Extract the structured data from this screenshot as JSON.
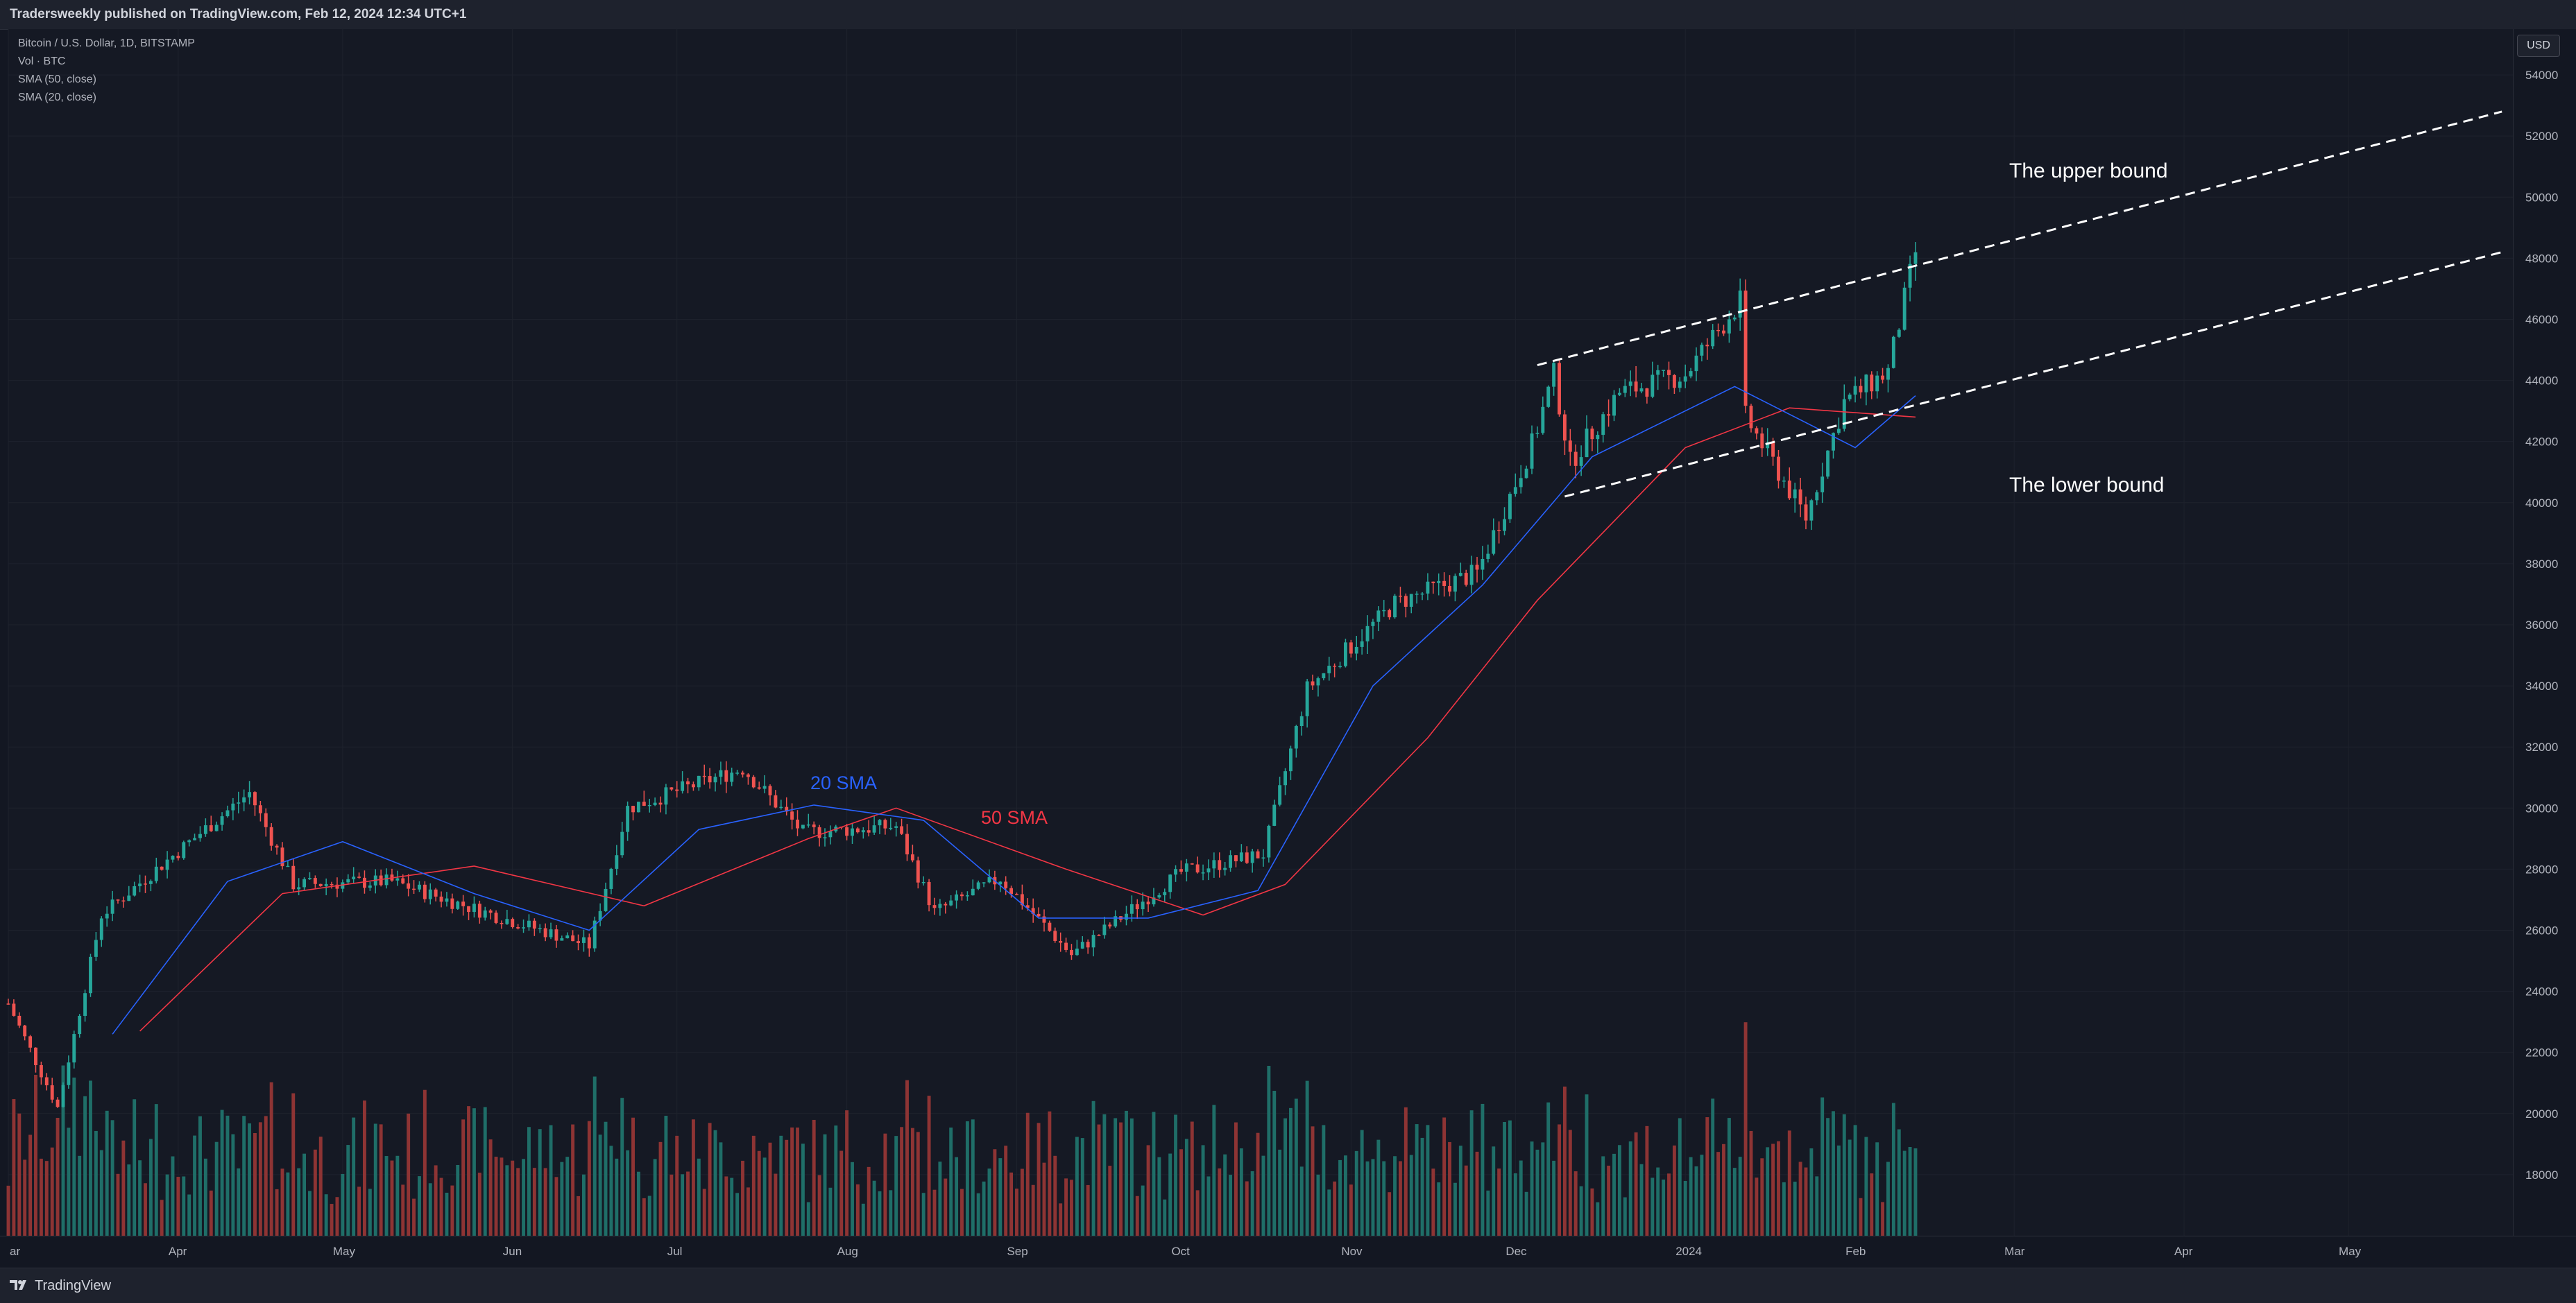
{
  "header": {
    "publish_text": "Tradersweekly published on TradingView.com, Feb 12, 2024 12:34 UTC+1"
  },
  "legend": {
    "symbol": "Bitcoin / U.S. Dollar, 1D, BITSTAMP",
    "volume": "Vol · BTC",
    "sma50": "SMA (50, close)",
    "sma20": "SMA (20, close)"
  },
  "currency_badge": "USD",
  "footer": {
    "brand": "TradingView"
  },
  "annotations": {
    "sma20_label": "20 SMA",
    "sma50_label": "50 SMA",
    "upper_bound": "The upper bound",
    "lower_bound": "The lower bound"
  },
  "colors": {
    "background": "#131722",
    "up_candle": "#26a69a",
    "down_candle": "#ef5350",
    "up_volume": "#1f6e68",
    "down_volume": "#8e3434",
    "sma20": "#2962ff",
    "sma50": "#f23645",
    "grid": "#1e222d",
    "axis_text": "#b2b5be",
    "channel_line": "#ffffff"
  },
  "chart_data": {
    "type": "candlestick",
    "title": "Bitcoin / U.S. Dollar, 1D, BITSTAMP",
    "x_ticks": [
      "ar",
      "Apr",
      "May",
      "Jun",
      "Jul",
      "Aug",
      "Sep",
      "Oct",
      "Nov",
      "Dec",
      "2024",
      "Feb",
      "Mar",
      "Apr",
      "May"
    ],
    "y_ticks": [
      18000,
      20000,
      22000,
      24000,
      26000,
      28000,
      30000,
      32000,
      34000,
      36000,
      38000,
      40000,
      42000,
      44000,
      46000,
      48000,
      50000,
      52000,
      54000
    ],
    "ylim": [
      16000,
      55500
    ],
    "grid": true,
    "date_range": [
      "2023-03-01",
      "2024-05-31"
    ],
    "price_key_points": [
      {
        "date": "2023-03-01",
        "close": 23600
      },
      {
        "date": "2023-03-10",
        "close": 20200
      },
      {
        "date": "2023-03-18",
        "close": 26500
      },
      {
        "date": "2023-03-28",
        "close": 28000
      },
      {
        "date": "2023-04-14",
        "close": 30500
      },
      {
        "date": "2023-04-22",
        "close": 27500
      },
      {
        "date": "2023-05-10",
        "close": 27600
      },
      {
        "date": "2023-05-25",
        "close": 26700
      },
      {
        "date": "2023-06-15",
        "close": 25500
      },
      {
        "date": "2023-06-22",
        "close": 30000
      },
      {
        "date": "2023-07-13",
        "close": 31300
      },
      {
        "date": "2023-07-24",
        "close": 29200
      },
      {
        "date": "2023-08-10",
        "close": 29400
      },
      {
        "date": "2023-08-17",
        "close": 26600
      },
      {
        "date": "2023-08-29",
        "close": 27700
      },
      {
        "date": "2023-09-11",
        "close": 25200
      },
      {
        "date": "2023-10-01",
        "close": 27900
      },
      {
        "date": "2023-10-16",
        "close": 28500
      },
      {
        "date": "2023-10-24",
        "close": 33900
      },
      {
        "date": "2023-11-09",
        "close": 36700
      },
      {
        "date": "2023-11-24",
        "close": 37700
      },
      {
        "date": "2023-12-04",
        "close": 41900
      },
      {
        "date": "2023-12-08",
        "close": 44200
      },
      {
        "date": "2023-12-11",
        "close": 41300
      },
      {
        "date": "2023-12-20",
        "close": 43600
      },
      {
        "date": "2024-01-01",
        "close": 44200
      },
      {
        "date": "2024-01-11",
        "close": 46600
      },
      {
        "date": "2024-01-12",
        "close": 42800
      },
      {
        "date": "2024-01-23",
        "close": 39500
      },
      {
        "date": "2024-01-30",
        "close": 43300
      },
      {
        "date": "2024-02-07",
        "close": 44300
      },
      {
        "date": "2024-02-12",
        "close": 48200
      }
    ],
    "sma20_key_points": [
      {
        "date": "2023-03-20",
        "value": 22600
      },
      {
        "date": "2023-04-10",
        "value": 27600
      },
      {
        "date": "2023-05-01",
        "value": 28900
      },
      {
        "date": "2023-05-25",
        "value": 27200
      },
      {
        "date": "2023-06-15",
        "value": 26000
      },
      {
        "date": "2023-07-05",
        "value": 29300
      },
      {
        "date": "2023-07-26",
        "value": 30100
      },
      {
        "date": "2023-08-15",
        "value": 29600
      },
      {
        "date": "2023-09-05",
        "value": 26400
      },
      {
        "date": "2023-09-25",
        "value": 26400
      },
      {
        "date": "2023-10-15",
        "value": 27300
      },
      {
        "date": "2023-11-05",
        "value": 34000
      },
      {
        "date": "2023-11-25",
        "value": 37300
      },
      {
        "date": "2023-12-15",
        "value": 41500
      },
      {
        "date": "2024-01-10",
        "value": 43800
      },
      {
        "date": "2024-02-01",
        "value": 41800
      },
      {
        "date": "2024-02-12",
        "value": 43500
      }
    ],
    "sma50_key_points": [
      {
        "date": "2023-03-25",
        "value": 22700
      },
      {
        "date": "2023-04-20",
        "value": 27200
      },
      {
        "date": "2023-05-25",
        "value": 28100
      },
      {
        "date": "2023-06-25",
        "value": 26800
      },
      {
        "date": "2023-07-25",
        "value": 29000
      },
      {
        "date": "2023-08-10",
        "value": 30000
      },
      {
        "date": "2023-09-10",
        "value": 28000
      },
      {
        "date": "2023-10-05",
        "value": 26500
      },
      {
        "date": "2023-10-20",
        "value": 27500
      },
      {
        "date": "2023-11-15",
        "value": 32300
      },
      {
        "date": "2023-12-05",
        "value": 36800
      },
      {
        "date": "2024-01-01",
        "value": 41800
      },
      {
        "date": "2024-01-20",
        "value": 43100
      },
      {
        "date": "2024-02-12",
        "value": 42800
      }
    ],
    "channel": {
      "upper": {
        "start": {
          "date": "2023-12-05",
          "price": 44500
        },
        "end": {
          "date": "2024-05-29",
          "price": 52800
        }
      },
      "lower": {
        "start": {
          "date": "2023-12-10",
          "price": 40200
        },
        "end": {
          "date": "2024-05-29",
          "price": 48200
        }
      }
    }
  }
}
